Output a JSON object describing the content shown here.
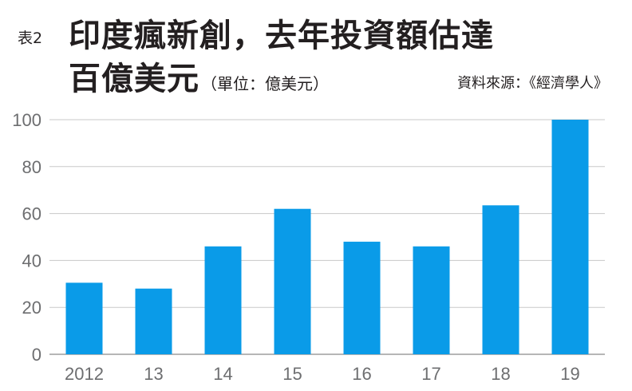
{
  "header": {
    "tag": "表2",
    "title_line1": "印度瘋新創，去年投資額估達",
    "title_line2": "百億美元",
    "unit": "（單位：億美元）",
    "source": "資料來源：《經濟學人》"
  },
  "chart_data": {
    "type": "bar",
    "categories": [
      "2012",
      "13",
      "14",
      "15",
      "16",
      "17",
      "18",
      "19"
    ],
    "values": [
      30.5,
      28,
      46,
      62,
      48,
      46,
      63.5,
      100
    ],
    "title": "印度瘋新創，去年投資額估達百億美元",
    "unit": "億美元",
    "ylim": [
      0,
      100
    ],
    "yticks": [
      0,
      20,
      40,
      60,
      80,
      100
    ],
    "grid": true,
    "bar_color": "#0a9be8",
    "grid_color": "#c8c8c8",
    "legend": "none"
  }
}
